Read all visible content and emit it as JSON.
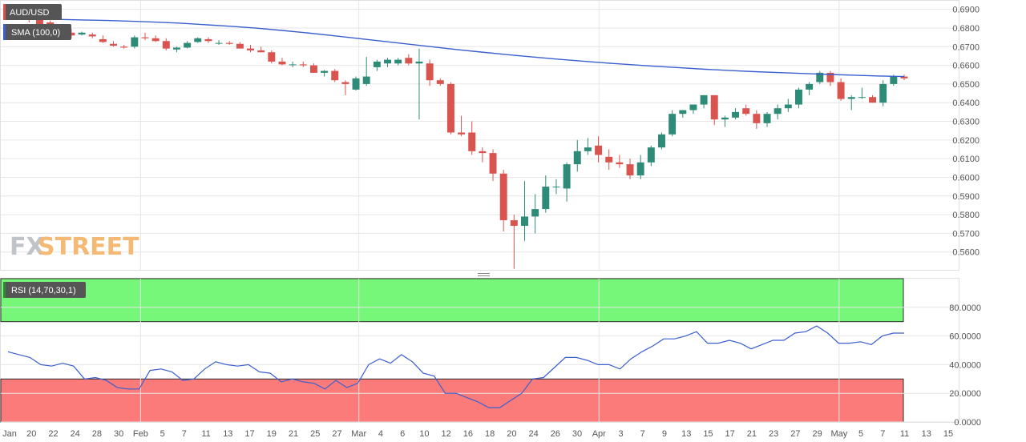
{
  "colors": {
    "up": "#2e8b77",
    "down": "#d9534f",
    "sma": "#3a5fcd",
    "rsi_line": "#3a5fcd",
    "overbought_zone": "#77f77a",
    "oversold_zone": "#fb7b7b",
    "grid": "#e6e6e6",
    "badge_bg": "#555555"
  },
  "watermark": {
    "part1": "FX",
    "part2": "STREET"
  },
  "rsi_label": "RSI (14,70,30,1)",
  "chart_data": [
    {
      "type": "candlestick",
      "symbol": "AUD/USD",
      "indicator_label": "SMA (100,0)",
      "ylim": [
        0.55,
        0.695
      ],
      "yticks": [
        "0.6900",
        "0.6800",
        "0.6700",
        "0.6600",
        "0.6500",
        "0.6400",
        "0.6300",
        "0.6200",
        "0.6100",
        "0.6000",
        "0.5900",
        "0.5800",
        "0.5700",
        "0.5600"
      ],
      "x_tick_labels": [
        "Jan",
        "20",
        "22",
        "24",
        "28",
        "30",
        "Feb",
        "5",
        "7",
        "11",
        "13",
        "17",
        "19",
        "21",
        "25",
        "27",
        "Mar",
        "4",
        "6",
        "10",
        "12",
        "16",
        "18",
        "20",
        "24",
        "26",
        "30",
        "Apr",
        "3",
        "7",
        "9",
        "13",
        "15",
        "17",
        "21",
        "23",
        "27",
        "29",
        "May",
        "5",
        "7",
        "11",
        "13",
        "15"
      ],
      "grid": true,
      "ohlc": [
        [
          0.689,
          0.69,
          0.686,
          0.687
        ],
        [
          0.687,
          0.6885,
          0.685,
          0.686
        ],
        [
          0.6855,
          0.6865,
          0.683,
          0.6845
        ],
        [
          0.6845,
          0.686,
          0.681,
          0.682
        ],
        [
          0.683,
          0.684,
          0.679,
          0.679
        ],
        [
          0.678,
          0.681,
          0.677,
          0.679
        ],
        [
          0.6775,
          0.6795,
          0.6745,
          0.676
        ],
        [
          0.6765,
          0.678,
          0.676,
          0.6775
        ],
        [
          0.6765,
          0.6775,
          0.6745,
          0.6755
        ],
        [
          0.674,
          0.676,
          0.672,
          0.6725
        ],
        [
          0.6715,
          0.673,
          0.67,
          0.6705
        ],
        [
          0.67,
          0.671,
          0.669,
          0.6695
        ],
        [
          0.67,
          0.676,
          0.669,
          0.675
        ],
        [
          0.675,
          0.6775,
          0.6735,
          0.6745
        ],
        [
          0.6745,
          0.676,
          0.6725,
          0.673
        ],
        [
          0.673,
          0.6745,
          0.668,
          0.669
        ],
        [
          0.6685,
          0.67,
          0.667,
          0.6695
        ],
        [
          0.6695,
          0.673,
          0.669,
          0.672
        ],
        [
          0.6725,
          0.675,
          0.672,
          0.6745
        ],
        [
          0.674,
          0.675,
          0.672,
          0.673
        ],
        [
          0.672,
          0.6735,
          0.671,
          0.672
        ],
        [
          0.672,
          0.673,
          0.671,
          0.6715
        ],
        [
          0.6715,
          0.6725,
          0.67,
          0.669
        ],
        [
          0.669,
          0.671,
          0.667,
          0.668
        ],
        [
          0.668,
          0.67,
          0.667,
          0.667
        ],
        [
          0.667,
          0.668,
          0.661,
          0.662
        ],
        [
          0.662,
          0.664,
          0.66,
          0.6605
        ],
        [
          0.6605,
          0.662,
          0.659,
          0.6605
        ],
        [
          0.6605,
          0.662,
          0.659,
          0.66
        ],
        [
          0.66,
          0.661,
          0.656,
          0.656
        ],
        [
          0.656,
          0.6575,
          0.654,
          0.657
        ],
        [
          0.657,
          0.658,
          0.651,
          0.652
        ],
        [
          0.651,
          0.652,
          0.644,
          0.65
        ],
        [
          0.647,
          0.654,
          0.6465,
          0.653
        ],
        [
          0.65,
          0.6645,
          0.649,
          0.654
        ],
        [
          0.659,
          0.663,
          0.657,
          0.662
        ],
        [
          0.661,
          0.664,
          0.659,
          0.663
        ],
        [
          0.661,
          0.664,
          0.66,
          0.663
        ],
        [
          0.664,
          0.666,
          0.66,
          0.661
        ],
        [
          0.661,
          0.669,
          0.631,
          0.662
        ],
        [
          0.661,
          0.663,
          0.649,
          0.652
        ],
        [
          0.652,
          0.653,
          0.649,
          0.65
        ],
        [
          0.65,
          0.651,
          0.623,
          0.624
        ],
        [
          0.624,
          0.633,
          0.622,
          0.623
        ],
        [
          0.624,
          0.63,
          0.612,
          0.614
        ],
        [
          0.614,
          0.616,
          0.608,
          0.613
        ],
        [
          0.613,
          0.615,
          0.598,
          0.602
        ],
        [
          0.602,
          0.604,
          0.571,
          0.577
        ],
        [
          0.577,
          0.58,
          0.551,
          0.574
        ],
        [
          0.574,
          0.598,
          0.566,
          0.579
        ],
        [
          0.579,
          0.591,
          0.57,
          0.583
        ],
        [
          0.583,
          0.601,
          0.581,
          0.595
        ],
        [
          0.595,
          0.599,
          0.591,
          0.595
        ],
        [
          0.594,
          0.608,
          0.587,
          0.607
        ],
        [
          0.607,
          0.62,
          0.603,
          0.614
        ],
        [
          0.614,
          0.621,
          0.612,
          0.616
        ],
        [
          0.617,
          0.622,
          0.608,
          0.612
        ],
        [
          0.611,
          0.615,
          0.604,
          0.608
        ],
        [
          0.608,
          0.612,
          0.605,
          0.607
        ],
        [
          0.607,
          0.61,
          0.599,
          0.601
        ],
        [
          0.601,
          0.612,
          0.599,
          0.608
        ],
        [
          0.608,
          0.617,
          0.606,
          0.616
        ],
        [
          0.616,
          0.624,
          0.615,
          0.623
        ],
        [
          0.623,
          0.636,
          0.622,
          0.634
        ],
        [
          0.634,
          0.636,
          0.632,
          0.636
        ],
        [
          0.636,
          0.639,
          0.634,
          0.639
        ],
        [
          0.639,
          0.644,
          0.637,
          0.644
        ],
        [
          0.644,
          0.644,
          0.628,
          0.631
        ],
        [
          0.631,
          0.633,
          0.627,
          0.632
        ],
        [
          0.632,
          0.637,
          0.631,
          0.635
        ],
        [
          0.637,
          0.639,
          0.633,
          0.634
        ],
        [
          0.634,
          0.636,
          0.626,
          0.629
        ],
        [
          0.629,
          0.635,
          0.627,
          0.634
        ],
        [
          0.634,
          0.639,
          0.631,
          0.637
        ],
        [
          0.637,
          0.642,
          0.635,
          0.639
        ],
        [
          0.639,
          0.648,
          0.637,
          0.647
        ],
        [
          0.647,
          0.651,
          0.644,
          0.65
        ],
        [
          0.651,
          0.657,
          0.65,
          0.656
        ],
        [
          0.656,
          0.657,
          0.649,
          0.651
        ],
        [
          0.651,
          0.653,
          0.641,
          0.642
        ],
        [
          0.642,
          0.644,
          0.636,
          0.643
        ],
        [
          0.643,
          0.648,
          0.642,
          0.643
        ],
        [
          0.643,
          0.644,
          0.64,
          0.64
        ],
        [
          0.64,
          0.652,
          0.638,
          0.65
        ],
        [
          0.65,
          0.655,
          0.649,
          0.654
        ],
        [
          0.654,
          0.655,
          0.652,
          0.653
        ]
      ],
      "sma": [
        0.685,
        0.6848,
        0.6846,
        0.6843,
        0.684,
        0.6836,
        0.6831,
        0.6825,
        0.6817,
        0.6809,
        0.6799,
        0.6787,
        0.6774,
        0.676,
        0.6745,
        0.673,
        0.6715,
        0.67,
        0.6685,
        0.6671,
        0.6658,
        0.6646,
        0.6634,
        0.6623,
        0.6613,
        0.6604,
        0.6595,
        0.6587,
        0.6579,
        0.6572,
        0.6566,
        0.6561,
        0.6556,
        0.6551,
        0.6547,
        0.6543,
        0.654
      ]
    },
    {
      "type": "line",
      "indicator_label": "RSI (14,70,30,1)",
      "ylim": [
        0,
        100
      ],
      "yticks": [
        "80.0000",
        "60.0000",
        "40.0000",
        "20.0000",
        "0.0000"
      ],
      "zones": {
        "overbought": [
          70,
          100
        ],
        "oversold": [
          0,
          30
        ]
      },
      "values": [
        49,
        47,
        45,
        40,
        39,
        41,
        39,
        30,
        31,
        29,
        24,
        23,
        23,
        36,
        37,
        35,
        29,
        30,
        37,
        42,
        40,
        39,
        40,
        35,
        34,
        28,
        30,
        28,
        27,
        23,
        29,
        24,
        27,
        40,
        44,
        41,
        47,
        42,
        34,
        32,
        20,
        20,
        17,
        14,
        10,
        10,
        15,
        20,
        30,
        31,
        38,
        45,
        45,
        43,
        40,
        40,
        37,
        44,
        49,
        53,
        58,
        58,
        60,
        63,
        55,
        55,
        57,
        55,
        51,
        54,
        57,
        57,
        62,
        63,
        67,
        62,
        55,
        55,
        56,
        54,
        60,
        62,
        62
      ]
    }
  ]
}
